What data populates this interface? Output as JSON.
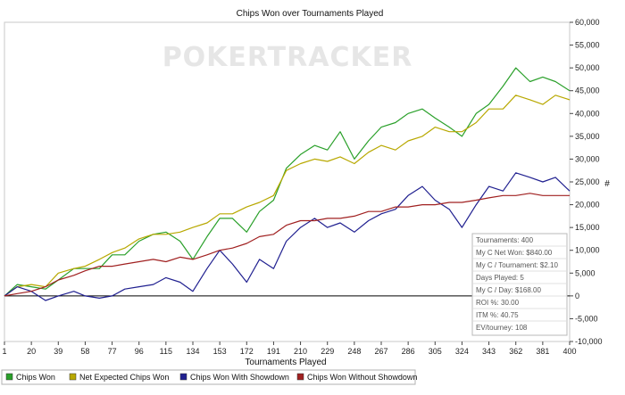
{
  "chart_data": {
    "type": "line",
    "title": "Chips Won over Tournaments Played",
    "xlabel": "Tournaments Played",
    "ylabel": "#",
    "watermark": "POKERTRACKER",
    "xlim": [
      1,
      400
    ],
    "ylim": [
      -10000,
      60000
    ],
    "x_ticks": [
      1,
      20,
      39,
      58,
      77,
      96,
      115,
      134,
      153,
      172,
      191,
      210,
      229,
      248,
      267,
      286,
      305,
      324,
      343,
      362,
      381,
      400
    ],
    "y_ticks": [
      -10000,
      -5000,
      0,
      5000,
      10000,
      15000,
      20000,
      25000,
      30000,
      35000,
      40000,
      45000,
      50000,
      55000,
      60000
    ],
    "y_tick_labels": [
      "-10,000",
      "-5,000",
      "0",
      "5,000",
      "10,000",
      "15,000",
      "20,000",
      "25,000",
      "30,000",
      "35,000",
      "40,000",
      "45,000",
      "50,000",
      "55,000",
      "60,000"
    ],
    "legend_position": "bottom",
    "grid": false,
    "series": [
      {
        "name": "Chips Won",
        "color": "#2aa02a",
        "x": [
          1,
          10,
          20,
          30,
          39,
          50,
          58,
          68,
          77,
          86,
          96,
          106,
          115,
          125,
          134,
          144,
          153,
          162,
          172,
          181,
          191,
          200,
          210,
          220,
          229,
          238,
          248,
          258,
          267,
          277,
          286,
          296,
          305,
          315,
          324,
          334,
          343,
          353,
          362,
          372,
          381,
          390,
          400
        ],
        "y": [
          0,
          2500,
          2000,
          1500,
          3500,
          6000,
          6000,
          6000,
          9000,
          9000,
          12000,
          13500,
          14000,
          12000,
          8000,
          13000,
          17000,
          17000,
          14000,
          18500,
          21000,
          28000,
          31000,
          33000,
          32000,
          36000,
          30000,
          34000,
          37000,
          38000,
          40000,
          41000,
          39000,
          37000,
          35000,
          40000,
          42000,
          46000,
          50000,
          47000,
          48000,
          47000,
          45000
        ]
      },
      {
        "name": "Net Expected Chips Won",
        "color": "#b8a800",
        "x": [
          1,
          10,
          20,
          30,
          39,
          50,
          58,
          68,
          77,
          86,
          96,
          106,
          115,
          125,
          134,
          144,
          153,
          162,
          172,
          181,
          191,
          200,
          210,
          220,
          229,
          238,
          248,
          258,
          267,
          277,
          286,
          296,
          305,
          315,
          324,
          334,
          343,
          353,
          362,
          372,
          381,
          390,
          400
        ],
        "y": [
          0,
          2000,
          2500,
          2000,
          5000,
          6000,
          6500,
          8000,
          9500,
          10500,
          12500,
          13500,
          13500,
          14000,
          15000,
          16000,
          18000,
          18000,
          19500,
          20500,
          22000,
          27500,
          29000,
          30000,
          29500,
          30500,
          29000,
          31500,
          33000,
          32000,
          34000,
          35000,
          37000,
          36000,
          36000,
          38000,
          41000,
          41000,
          44000,
          43000,
          42000,
          44000,
          43000
        ]
      },
      {
        "name": "Chips Won With Showdown",
        "color": "#202090",
        "x": [
          1,
          10,
          20,
          30,
          39,
          50,
          58,
          68,
          77,
          86,
          96,
          106,
          115,
          125,
          134,
          144,
          153,
          162,
          172,
          181,
          191,
          200,
          210,
          220,
          229,
          238,
          248,
          258,
          267,
          277,
          286,
          296,
          305,
          315,
          324,
          334,
          343,
          353,
          362,
          372,
          381,
          390,
          400
        ],
        "y": [
          0,
          2000,
          1000,
          -1000,
          0,
          1000,
          0,
          -500,
          0,
          1500,
          2000,
          2500,
          4000,
          3000,
          1000,
          6000,
          10000,
          7000,
          3000,
          8000,
          6000,
          12000,
          15000,
          17000,
          15000,
          16000,
          14000,
          16500,
          18000,
          19000,
          22000,
          24000,
          21000,
          19000,
          15000,
          20000,
          24000,
          23000,
          27000,
          26000,
          25000,
          26000,
          23000
        ]
      },
      {
        "name": "Chips Won Without Showdown",
        "color": "#a02020",
        "x": [
          1,
          10,
          20,
          30,
          39,
          50,
          58,
          68,
          77,
          86,
          96,
          106,
          115,
          125,
          134,
          144,
          153,
          162,
          172,
          181,
          191,
          200,
          210,
          220,
          229,
          238,
          248,
          258,
          267,
          277,
          286,
          296,
          305,
          315,
          324,
          334,
          343,
          353,
          362,
          372,
          381,
          390,
          400
        ],
        "y": [
          0,
          500,
          1000,
          2000,
          3500,
          4500,
          5500,
          6500,
          6500,
          7000,
          7500,
          8000,
          7500,
          8500,
          8000,
          9000,
          10000,
          10500,
          11500,
          13000,
          13500,
          15500,
          16500,
          16500,
          17000,
          17000,
          17500,
          18500,
          18500,
          19500,
          19500,
          20000,
          20000,
          20500,
          20500,
          21000,
          21500,
          22000,
          22000,
          22500,
          22000,
          22000,
          22000
        ]
      }
    ]
  },
  "stats": {
    "lines": [
      "Tournaments: 400",
      "My C Net Won: $840.00",
      "My C / Tournament: $2.10",
      "Days Played: 5",
      "My C / Day: $168.00",
      "ROI %: 30.00",
      "ITM %: 40.75",
      "EV/tourney: 108"
    ]
  }
}
